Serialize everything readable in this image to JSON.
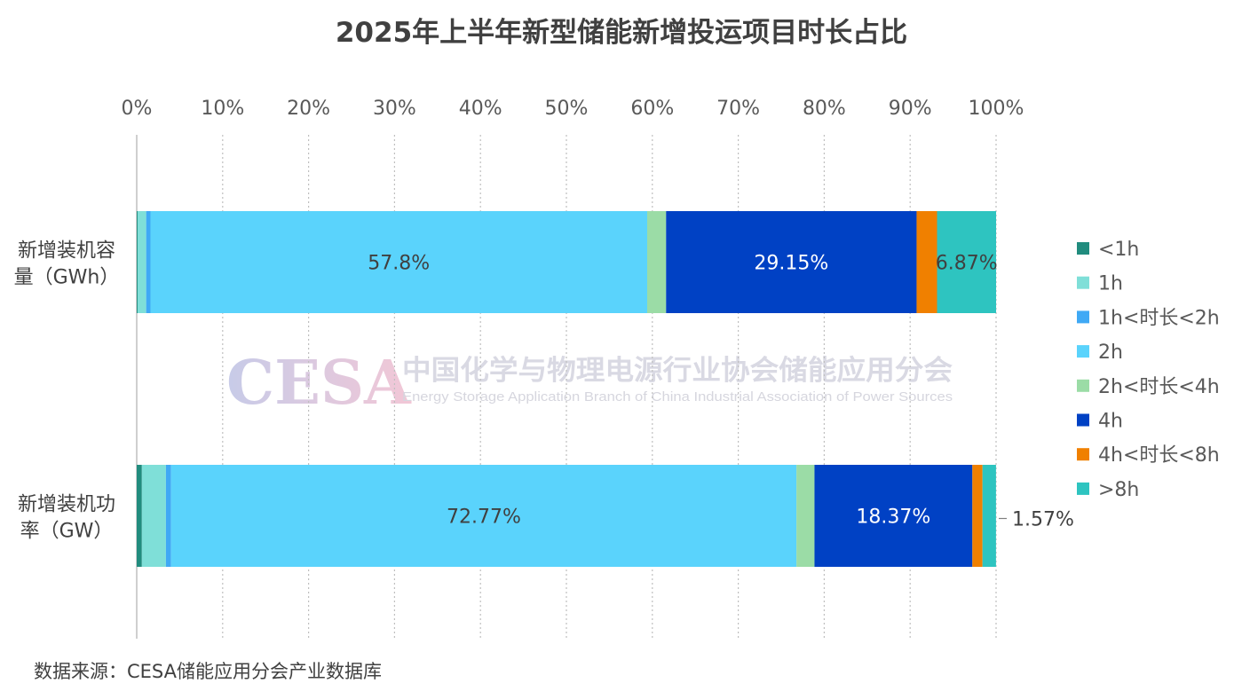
{
  "chart_data": {
    "type": "bar",
    "orientation": "horizontal",
    "stacked": "percent",
    "title": "2025年上半年新型储能新增投运项目时长占比",
    "categories": [
      [
        "新增装机容",
        "量（GWh）"
      ],
      [
        "新增装机功",
        "率（GW）"
      ]
    ],
    "xlim": [
      0,
      100
    ],
    "x_ticks": [
      "0%",
      "10%",
      "20%",
      "30%",
      "40%",
      "50%",
      "60%",
      "70%",
      "80%",
      "90%",
      "100%"
    ],
    "x_tick_values": [
      0,
      10,
      20,
      30,
      40,
      50,
      60,
      70,
      80,
      90,
      100
    ],
    "grid": "vertical dotted",
    "legend_position": "right",
    "series": [
      {
        "name": "<1h",
        "color": "#218c7e",
        "values": [
          0.1,
          0.6
        ]
      },
      {
        "name": "1h",
        "color": "#7fdfd8",
        "values": [
          1.0,
          2.8
        ]
      },
      {
        "name": "1h<时长<2h",
        "color": "#3fa9f5",
        "values": [
          0.5,
          0.6
        ]
      },
      {
        "name": "2h",
        "color": "#5ad3fc",
        "values": [
          57.8,
          72.77
        ],
        "labels": [
          "57.8%",
          "72.77%"
        ]
      },
      {
        "name": "2h<时长<4h",
        "color": "#9bdca6",
        "values": [
          2.2,
          2.1
        ]
      },
      {
        "name": "4h",
        "color": "#0041c4",
        "values": [
          29.15,
          18.37
        ],
        "labels": [
          "29.15%",
          "18.37%"
        ]
      },
      {
        "name": "4h<时长<8h",
        "color": "#f08000",
        "values": [
          2.38,
          1.18
        ]
      },
      {
        "name": ">8h",
        "color": "#2ec4c0",
        "values": [
          6.87,
          1.57
        ],
        "labels": [
          "6.87%",
          "1.57%"
        ]
      }
    ]
  },
  "watermark": {
    "logo": "CESA",
    "name_cn": "中国化学与物理电源行业协会储能应用分会",
    "name_en": "Energy Storage Application Branch of China Industrial Association of Power Sources"
  },
  "source": "数据来源：CESA储能应用分会产业数据库"
}
